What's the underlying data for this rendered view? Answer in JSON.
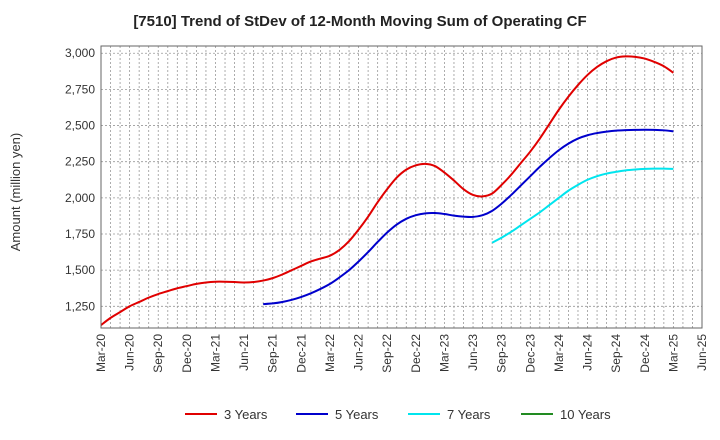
{
  "chart_data": {
    "type": "line",
    "title": "[7510]  Trend of StDev of 12-Month Moving Sum of Operating CF",
    "xlabel": "",
    "ylabel": "Amount (million yen)",
    "ylim": [
      1100,
      3050
    ],
    "yticks": [
      1250,
      1500,
      1750,
      2000,
      2250,
      2500,
      2750,
      3000
    ],
    "ytick_labels": [
      "1,250",
      "1,500",
      "1,750",
      "2,000",
      "2,250",
      "2,500",
      "2,750",
      "3,000"
    ],
    "x_ticks": [
      "Mar-20",
      "Jun-20",
      "Sep-20",
      "Dec-20",
      "Mar-21",
      "Jun-21",
      "Sep-21",
      "Dec-21",
      "Mar-22",
      "Jun-22",
      "Sep-22",
      "Dec-22",
      "Mar-23",
      "Jun-23",
      "Sep-23",
      "Dec-23",
      "Mar-24",
      "Jun-24",
      "Sep-24",
      "Dec-24",
      "Mar-25",
      "Jun-25"
    ],
    "grid": true,
    "legend_position": "bottom",
    "series": [
      {
        "name": "3 Years",
        "color": "#e00000",
        "points": [
          [
            "Mar-20",
            1120
          ],
          [
            "Apr-20",
            1170
          ],
          [
            "May-20",
            1210
          ],
          [
            "Jun-20",
            1250
          ],
          [
            "Jul-20",
            1280
          ],
          [
            "Aug-20",
            1310
          ],
          [
            "Sep-20",
            1335
          ],
          [
            "Oct-20",
            1355
          ],
          [
            "Nov-20",
            1375
          ],
          [
            "Dec-20",
            1390
          ],
          [
            "Jan-21",
            1405
          ],
          [
            "Feb-21",
            1415
          ],
          [
            "Mar-21",
            1420
          ],
          [
            "Apr-21",
            1420
          ],
          [
            "May-21",
            1418
          ],
          [
            "Jun-21",
            1415
          ],
          [
            "Jul-21",
            1418
          ],
          [
            "Aug-21",
            1428
          ],
          [
            "Sep-21",
            1445
          ],
          [
            "Oct-21",
            1470
          ],
          [
            "Nov-21",
            1500
          ],
          [
            "Dec-21",
            1530
          ],
          [
            "Jan-22",
            1560
          ],
          [
            "Feb-22",
            1580
          ],
          [
            "Mar-22",
            1600
          ],
          [
            "Apr-22",
            1640
          ],
          [
            "May-22",
            1700
          ],
          [
            "Jun-22",
            1780
          ],
          [
            "Jul-22",
            1870
          ],
          [
            "Aug-22",
            1970
          ],
          [
            "Sep-22",
            2060
          ],
          [
            "Oct-22",
            2140
          ],
          [
            "Nov-22",
            2195
          ],
          [
            "Dec-22",
            2225
          ],
          [
            "Jan-23",
            2235
          ],
          [
            "Feb-23",
            2220
          ],
          [
            "Mar-23",
            2175
          ],
          [
            "Apr-23",
            2120
          ],
          [
            "May-23",
            2060
          ],
          [
            "Jun-23",
            2020
          ],
          [
            "Jul-23",
            2010
          ],
          [
            "Aug-23",
            2030
          ],
          [
            "Sep-23",
            2090
          ],
          [
            "Oct-23",
            2160
          ],
          [
            "Nov-23",
            2240
          ],
          [
            "Dec-23",
            2320
          ],
          [
            "Jan-24",
            2410
          ],
          [
            "Feb-24",
            2510
          ],
          [
            "Mar-24",
            2610
          ],
          [
            "Apr-24",
            2700
          ],
          [
            "May-24",
            2780
          ],
          [
            "Jun-24",
            2850
          ],
          [
            "Jul-24",
            2905
          ],
          [
            "Aug-24",
            2945
          ],
          [
            "Sep-24",
            2970
          ],
          [
            "Oct-24",
            2978
          ],
          [
            "Nov-24",
            2975
          ],
          [
            "Dec-24",
            2963
          ],
          [
            "Jan-25",
            2940
          ],
          [
            "Feb-25",
            2910
          ],
          [
            "Mar-25",
            2865
          ]
        ]
      },
      {
        "name": "5 Years",
        "color": "#0000cc",
        "points": [
          [
            "Aug-21",
            1265
          ],
          [
            "Sep-21",
            1270
          ],
          [
            "Oct-21",
            1280
          ],
          [
            "Nov-21",
            1295
          ],
          [
            "Dec-21",
            1315
          ],
          [
            "Jan-22",
            1340
          ],
          [
            "Feb-22",
            1370
          ],
          [
            "Mar-22",
            1405
          ],
          [
            "Apr-22",
            1450
          ],
          [
            "May-22",
            1500
          ],
          [
            "Jun-22",
            1560
          ],
          [
            "Jul-22",
            1625
          ],
          [
            "Aug-22",
            1695
          ],
          [
            "Sep-22",
            1760
          ],
          [
            "Oct-22",
            1815
          ],
          [
            "Nov-22",
            1855
          ],
          [
            "Dec-22",
            1880
          ],
          [
            "Jan-23",
            1893
          ],
          [
            "Feb-23",
            1895
          ],
          [
            "Mar-23",
            1888
          ],
          [
            "Apr-23",
            1877
          ],
          [
            "May-23",
            1870
          ],
          [
            "Jun-23",
            1868
          ],
          [
            "Jul-23",
            1880
          ],
          [
            "Aug-23",
            1910
          ],
          [
            "Sep-23",
            1960
          ],
          [
            "Oct-23",
            2020
          ],
          [
            "Nov-23",
            2085
          ],
          [
            "Dec-23",
            2150
          ],
          [
            "Jan-24",
            2215
          ],
          [
            "Feb-24",
            2275
          ],
          [
            "Mar-24",
            2330
          ],
          [
            "Apr-24",
            2375
          ],
          [
            "May-24",
            2410
          ],
          [
            "Jun-24",
            2433
          ],
          [
            "Jul-24",
            2448
          ],
          [
            "Aug-24",
            2458
          ],
          [
            "Sep-24",
            2465
          ],
          [
            "Oct-24",
            2468
          ],
          [
            "Nov-24",
            2470
          ],
          [
            "Dec-24",
            2471
          ],
          [
            "Jan-25",
            2470
          ],
          [
            "Feb-25",
            2467
          ],
          [
            "Mar-25",
            2460
          ]
        ]
      },
      {
        "name": "7 Years",
        "color": "#00e5ee",
        "points": [
          [
            "Aug-23",
            1690
          ],
          [
            "Sep-23",
            1725
          ],
          [
            "Oct-23",
            1765
          ],
          [
            "Nov-23",
            1810
          ],
          [
            "Dec-23",
            1855
          ],
          [
            "Jan-24",
            1900
          ],
          [
            "Feb-24",
            1950
          ],
          [
            "Mar-24",
            2000
          ],
          [
            "Apr-24",
            2050
          ],
          [
            "May-24",
            2090
          ],
          [
            "Jun-24",
            2125
          ],
          [
            "Jul-24",
            2150
          ],
          [
            "Aug-24",
            2168
          ],
          [
            "Sep-24",
            2180
          ],
          [
            "Oct-24",
            2190
          ],
          [
            "Nov-24",
            2196
          ],
          [
            "Dec-24",
            2200
          ],
          [
            "Jan-25",
            2202
          ],
          [
            "Feb-25",
            2202
          ],
          [
            "Mar-25",
            2200
          ]
        ]
      },
      {
        "name": "10 Years",
        "color": "#228b22",
        "points": []
      }
    ]
  }
}
